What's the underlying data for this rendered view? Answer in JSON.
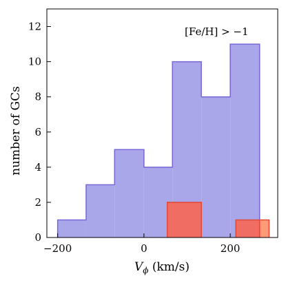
{
  "chart_data": {
    "type": "bar",
    "histogram": true,
    "xlabel": "V_ϕ (km/s)",
    "ylabel": "number of GCs",
    "xlim": [
      -225,
      310
    ],
    "ylim": [
      0,
      13
    ],
    "xticks": [
      -200,
      0,
      200
    ],
    "xtick_labels": [
      "−200",
      "0",
      "200"
    ],
    "yticks": [
      0,
      2,
      4,
      6,
      8,
      10,
      12
    ],
    "annotation": "[Fe/H] > −1",
    "series": [
      {
        "color_fill": "#aaa6ea",
        "color_edge": "#7567d6",
        "bins": [
          {
            "x0": -200,
            "x1": -134,
            "count": 1
          },
          {
            "x0": -134,
            "x1": -68,
            "count": 3
          },
          {
            "x0": -68,
            "x1": 0,
            "count": 5
          },
          {
            "x0": 0,
            "x1": 66,
            "count": 4
          },
          {
            "x0": 66,
            "x1": 133,
            "count": 10
          },
          {
            "x0": 133,
            "x1": 200,
            "count": 8
          },
          {
            "x0": 200,
            "x1": 268,
            "count": 11
          }
        ]
      },
      {
        "color_fill": "#ef6d62",
        "color_fill_light": "#ff9a78",
        "color_edge": "#e04934",
        "bins": [
          {
            "x0": 54,
            "x1": 133,
            "count": 2
          },
          {
            "x0": 213,
            "x1": 268,
            "count": 1,
            "overlap": true
          },
          {
            "x0": 268,
            "x1": 290,
            "count": 1,
            "overlap": false
          }
        ]
      }
    ]
  }
}
